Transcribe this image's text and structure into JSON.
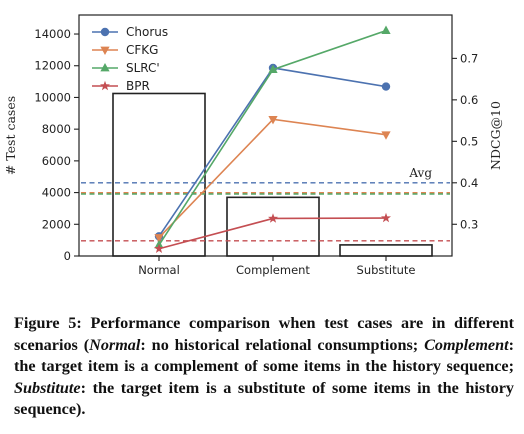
{
  "chart_data": {
    "type": "bar+line",
    "categories": [
      "Normal",
      "Complement",
      "Substitute"
    ],
    "bars": {
      "axis": "left",
      "values": [
        10250,
        3700,
        700
      ],
      "color": "#222222"
    },
    "left_axis": {
      "label": "# Test cases",
      "range": [
        0,
        15200
      ],
      "ticks": [
        0,
        2000,
        4000,
        6000,
        8000,
        10000,
        12000,
        14000
      ]
    },
    "right_axis": {
      "label": "NDCG@10",
      "range": [
        0.2235,
        0.8046
      ],
      "ticks": [
        0.3,
        0.4,
        0.5,
        0.6,
        0.7
      ]
    },
    "series": [
      {
        "name": "Chorus",
        "color": "#4C72B0",
        "marker": "circle",
        "values": [
          0.271,
          0.677,
          0.632
        ]
      },
      {
        "name": "CFKG",
        "color": "#DD8452",
        "marker": "triangle-down",
        "values": [
          0.268,
          0.553,
          0.516
        ]
      },
      {
        "name": "SLRC'",
        "color": "#55A868",
        "marker": "triangle-up",
        "values": [
          0.25,
          0.673,
          0.767
        ]
      },
      {
        "name": "BPR",
        "color": "#C44E52",
        "marker": "star",
        "values": [
          0.241,
          0.314,
          0.315
        ]
      }
    ],
    "avg_lines": [
      {
        "name": "Chorus",
        "color": "#4C72B0",
        "value": 0.4
      },
      {
        "name": "CFKG",
        "color": "#DD8452",
        "value": 0.376
      },
      {
        "name": "SLRC'",
        "color": "#55A868",
        "value": 0.373
      },
      {
        "name": "BPR",
        "color": "#C44E52",
        "value": 0.26
      }
    ],
    "annotation": "Avg",
    "legend_position": "top-left",
    "grid": false
  },
  "caption": {
    "label": "Figure 5:",
    "t1": "Performance comparison when test cases are in different scenarios (",
    "normal": "Normal",
    "t2": ": no historical relational consumptions; ",
    "complement": "Complement",
    "t3": ": the target item is a complement of some items in the history sequence; ",
    "substitute": "Substitute",
    "t4": ": the target item is a substitute of some items in the history sequence)."
  }
}
